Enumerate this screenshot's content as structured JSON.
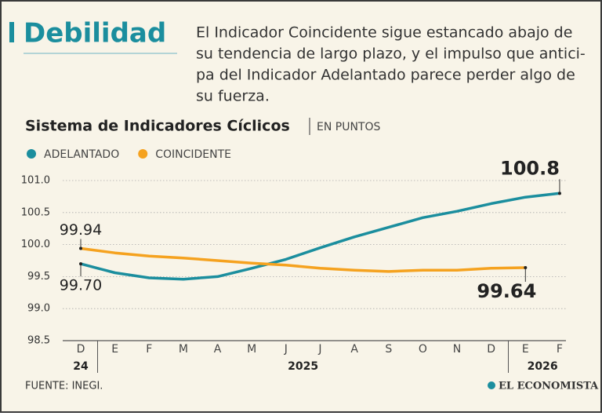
{
  "title": "Debilidad",
  "description": [
    "El Indicador Coincidente sigue estancado abajo de",
    "su tendencia de largo plazo, y el impulso que antici-",
    "pa del Indicador Adelantado parece perder algo de",
    "su fuerza."
  ],
  "chart_data": {
    "type": "line",
    "title": "Sistema de Indicadores Cíclicos",
    "subtitle": "EN PUNTOS",
    "categories": [
      "D",
      "E",
      "F",
      "M",
      "A",
      "M",
      "J",
      "J",
      "A",
      "S",
      "O",
      "N",
      "D",
      "E",
      "F"
    ],
    "year_labels": [
      "24",
      "2025",
      "2026"
    ],
    "series": [
      {
        "name": "ADELANTADO",
        "color": "#1b8e9e",
        "values": [
          99.7,
          99.56,
          99.48,
          99.46,
          99.5,
          99.63,
          99.77,
          99.95,
          100.12,
          100.27,
          100.42,
          100.52,
          100.64,
          100.74,
          100.8
        ],
        "value_labels": [
          "99.70",
          null,
          null,
          null,
          null,
          null,
          null,
          null,
          null,
          null,
          null,
          null,
          null,
          null,
          "100.8"
        ]
      },
      {
        "name": "COINCIDENTE",
        "color": "#f5a21f",
        "values": [
          99.94,
          99.87,
          99.82,
          99.79,
          99.75,
          99.71,
          99.68,
          99.63,
          99.6,
          99.58,
          99.6,
          99.6,
          99.63,
          99.64,
          null
        ],
        "value_labels": [
          "99.94",
          null,
          null,
          null,
          null,
          null,
          null,
          null,
          null,
          null,
          null,
          null,
          null,
          "99.64",
          null
        ]
      }
    ],
    "ylim": [
      98.5,
      101.0
    ],
    "yticks": [
      98.5,
      {
        "value": 99.0,
        "label": "99.0"
      },
      99.5,
      {
        "value": 100.0,
        "label": "100.0"
      },
      100.5,
      {
        "value": 101.0,
        "label": "101.0"
      }
    ],
    "grid": true,
    "legend": "top-left",
    "source": "FUENTE: INEGI.",
    "logo": "EL ECONOMISTA"
  }
}
